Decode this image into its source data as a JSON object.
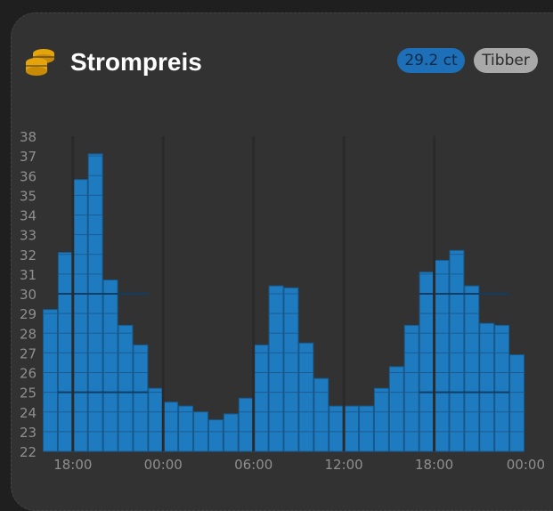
{
  "header": {
    "title": "Strompreis",
    "icon": "coins-icon",
    "price_badge": "29.2 ct",
    "provider_badge": "Tibber"
  },
  "colors": {
    "accent": "#1f7bc0",
    "card_bg": "#323232",
    "icon_gold": "#e5a50a",
    "axis_text": "#8f8f8f"
  },
  "chart_data": {
    "type": "bar",
    "x_ticks": [
      "18:00",
      "00:00",
      "06:00",
      "12:00",
      "18:00",
      "00:00"
    ],
    "y_ticks": [
      22,
      23,
      24,
      25,
      26,
      27,
      28,
      29,
      30,
      31,
      32,
      33,
      34,
      35,
      36,
      37,
      38
    ],
    "ylim": [
      22,
      38
    ],
    "grid": false,
    "series": [
      {
        "values": [
          29.2,
          32.1,
          35.8,
          37.1,
          30.7,
          28.4,
          27.4,
          25.2,
          24.5,
          24.3,
          24.0,
          23.6,
          23.9,
          24.7,
          27.4,
          30.4,
          30.3,
          27.5,
          25.7,
          24.3,
          24.3,
          24.3,
          25.2,
          26.3,
          28.4,
          31.1,
          31.7,
          32.2,
          30.4,
          28.5,
          28.4,
          26.9
        ]
      }
    ]
  }
}
